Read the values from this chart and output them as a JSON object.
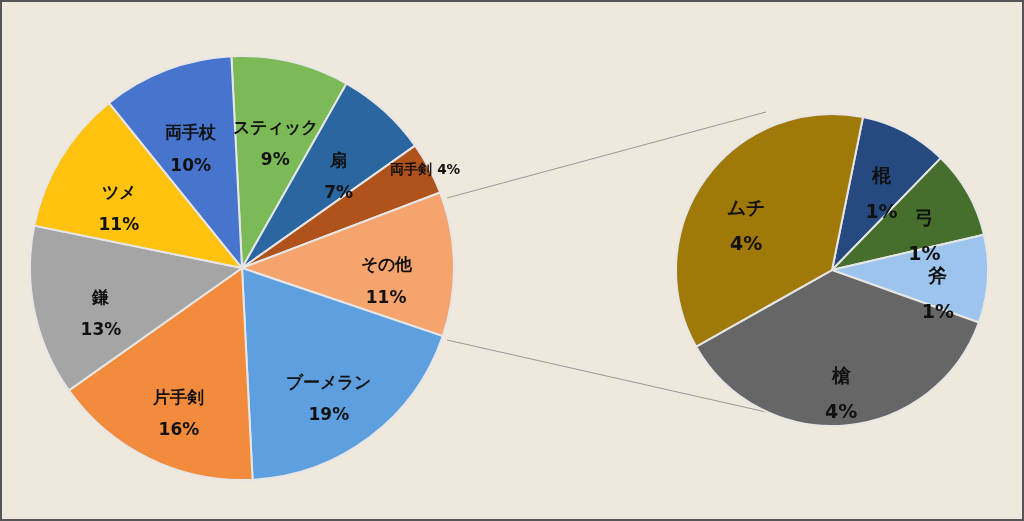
{
  "chart_data": [
    {
      "type": "pie",
      "categories": [
        "スティック",
        "扇",
        "両手剣",
        "その他",
        "ブーメラン",
        "片手剣",
        "鎌",
        "ツメ",
        "両手杖"
      ],
      "values": [
        9,
        7,
        4,
        11,
        19,
        16,
        13,
        11,
        10
      ],
      "value_labels": [
        "9%",
        "7%",
        "4%",
        "11%",
        "19%",
        "16%",
        "13%",
        "11%",
        "10%"
      ],
      "colors": [
        "#7cb957",
        "#2a66a0",
        "#b0521c",
        "#f6a46e",
        "#5e9fe0",
        "#f38b3c",
        "#a5a5a5",
        "#ffc20e",
        "#4774cc"
      ]
    },
    {
      "type": "pie",
      "categories": [
        "棍",
        "弓",
        "斧",
        "槍",
        "ムチ"
      ],
      "values": [
        1,
        1,
        1,
        4,
        4
      ],
      "value_labels": [
        "1%",
        "1%",
        "1%",
        "4%",
        "4%"
      ],
      "colors": [
        "#264a80",
        "#466e2c",
        "#9cc4ec",
        "#666666",
        "#a07a08"
      ]
    }
  ]
}
